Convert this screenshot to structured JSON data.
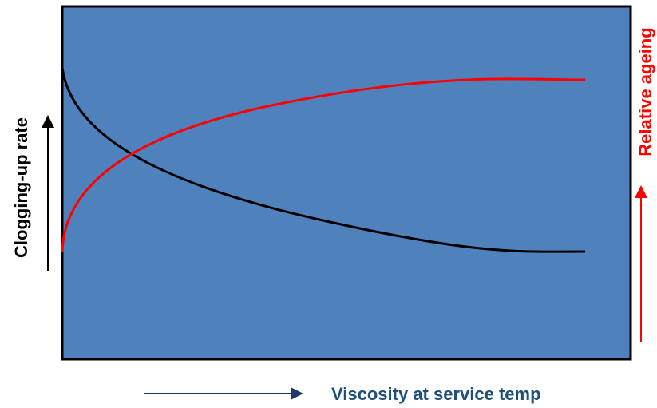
{
  "y_axis_label": "Clogging-up rate",
  "y2_axis_label": "Relative ageing",
  "x_axis_label": "Viscosity at service temp"
}
